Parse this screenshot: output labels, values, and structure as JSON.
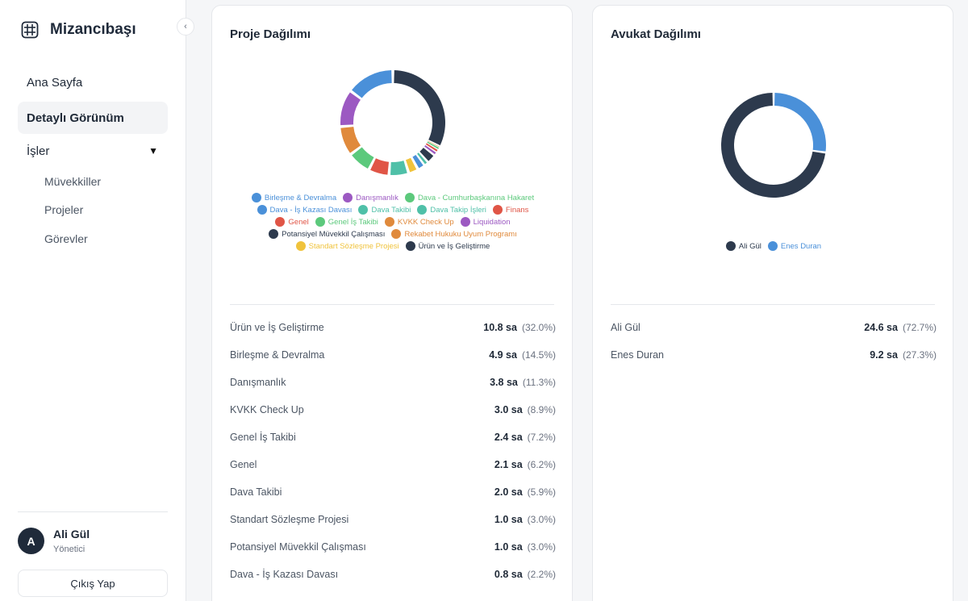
{
  "brand": {
    "name": "Mizancıbaşı",
    "icon": "grid-icon"
  },
  "sidebar": {
    "collapse_icon": "‹",
    "items": [
      {
        "label": "Ana Sayfa"
      },
      {
        "label": "Detaylı Görünüm"
      },
      {
        "label": "İşler",
        "caret": "▼"
      }
    ],
    "subitems": [
      {
        "label": "Müvekkiller"
      },
      {
        "label": "Projeler"
      },
      {
        "label": "Görevler"
      }
    ]
  },
  "user": {
    "initial": "A",
    "name": "Ali Gül",
    "role": "Yönetici",
    "logout_label": "Çıkış Yap"
  },
  "project_card": {
    "title": "Proje Dağılımı",
    "chart_data": {
      "type": "pie",
      "title": "Proje Dağılımı",
      "slices": [
        {
          "label": "Ürün ve İş Geliştirme",
          "value": 10.8,
          "color": "#2d3a4d"
        },
        {
          "label": "Rekabet Hukuku Uyum Programı",
          "value": 0.08,
          "color": "#e08a3c"
        },
        {
          "label": "Dava - Cumhurbaşkanına Hakaret",
          "value": 0.25,
          "color": "#5cc97c"
        },
        {
          "label": "Finans",
          "value": 0.3,
          "color": "#e05546"
        },
        {
          "label": "Liquidation",
          "value": 0.35,
          "color": "#9c59c2"
        },
        {
          "label": "Potansiyel Müvekkil Çalışması",
          "value": 1.0,
          "color": "#2d3a4d"
        },
        {
          "label": "Dava Takip İşleri",
          "value": 0.4,
          "color": "#4fc0a8"
        },
        {
          "label": "Dava - İş Kazası Davası",
          "value": 0.8,
          "color": "#4a90d9"
        },
        {
          "label": "Standart Sözleşme Projesi",
          "value": 1.0,
          "color": "#f0c33c"
        },
        {
          "label": "Dava Takibi",
          "value": 2.0,
          "color": "#4fc0a8"
        },
        {
          "label": "Genel",
          "value": 2.1,
          "color": "#e05546"
        },
        {
          "label": "Genel İş Takibi",
          "value": 2.4,
          "color": "#5cc97c"
        },
        {
          "label": "KVKK Check Up",
          "value": 3.0,
          "color": "#e08a3c"
        },
        {
          "label": "Danışmanlık",
          "value": 3.8,
          "color": "#9c59c2"
        },
        {
          "label": "Birleşme & Devralma",
          "value": 4.9,
          "color": "#4a90d9"
        }
      ]
    },
    "legend": [
      [
        {
          "label": "Birleşme & Devralma",
          "color": "#4a90d9"
        },
        {
          "label": "Danışmanlık",
          "color": "#9c59c2"
        },
        {
          "label": "Dava - Cumhurbaşkanına Hakaret",
          "color": "#5cc97c"
        }
      ],
      [
        {
          "label": "Dava - İş Kazası Davası",
          "color": "#4a90d9"
        },
        {
          "label": "Dava Takibi",
          "color": "#4fc0a8"
        },
        {
          "label": "Dava Takip İşleri",
          "color": "#4fc0a8"
        },
        {
          "label": "Finans",
          "color": "#e05546"
        }
      ],
      [
        {
          "label": "Genel",
          "color": "#e05546"
        },
        {
          "label": "Genel İş Takibi",
          "color": "#5cc97c"
        },
        {
          "label": "KVKK Check Up",
          "color": "#e08a3c"
        },
        {
          "label": "Liquidation",
          "color": "#9c59c2"
        }
      ],
      [
        {
          "label": "Potansiyel Müvekkil Çalışması",
          "color": "#2d3a4d"
        },
        {
          "label": "Rekabet Hukuku Uyum Programı",
          "color": "#e08a3c"
        }
      ],
      [
        {
          "label": "Standart Sözleşme Projesi",
          "color": "#f0c33c"
        },
        {
          "label": "Ürün ve İş Geliştirme",
          "color": "#2d3a4d"
        }
      ]
    ],
    "rows": [
      {
        "name": "Ürün ve İş Geliştirme",
        "hours": "10.8 sa",
        "pct": "(32.0%)"
      },
      {
        "name": "Birleşme & Devralma",
        "hours": "4.9 sa",
        "pct": "(14.5%)"
      },
      {
        "name": "Danışmanlık",
        "hours": "3.8 sa",
        "pct": "(11.3%)"
      },
      {
        "name": "KVKK Check Up",
        "hours": "3.0 sa",
        "pct": "(8.9%)"
      },
      {
        "name": "Genel İş Takibi",
        "hours": "2.4 sa",
        "pct": "(7.2%)"
      },
      {
        "name": "Genel",
        "hours": "2.1 sa",
        "pct": "(6.2%)"
      },
      {
        "name": "Dava Takibi",
        "hours": "2.0 sa",
        "pct": "(5.9%)"
      },
      {
        "name": "Standart Sözleşme Projesi",
        "hours": "1.0 sa",
        "pct": "(3.0%)"
      },
      {
        "name": "Potansiyel Müvekkil Çalışması",
        "hours": "1.0 sa",
        "pct": "(3.0%)"
      },
      {
        "name": "Dava - İş Kazası Davası",
        "hours": "0.8 sa",
        "pct": "(2.2%)"
      }
    ]
  },
  "lawyer_card": {
    "title": "Avukat Dağılımı",
    "chart_data": {
      "type": "pie",
      "title": "Avukat Dağılımı",
      "slices": [
        {
          "label": "Enes Duran",
          "value": 9.2,
          "color": "#4a90d9"
        },
        {
          "label": "Ali Gül",
          "value": 24.6,
          "color": "#2d3a4d"
        }
      ]
    },
    "legend": [
      [
        {
          "label": "Ali Gül",
          "color": "#2d3a4d"
        },
        {
          "label": "Enes Duran",
          "color": "#4a90d9"
        }
      ]
    ],
    "rows": [
      {
        "name": "Ali Gül",
        "hours": "24.6 sa",
        "pct": "(72.7%)"
      },
      {
        "name": "Enes Duran",
        "hours": "9.2 sa",
        "pct": "(27.3%)"
      }
    ]
  }
}
